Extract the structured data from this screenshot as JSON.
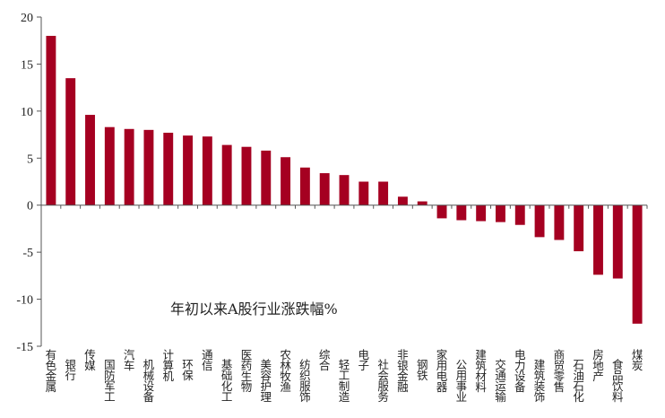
{
  "chart_data": {
    "type": "bar",
    "title": "",
    "annotation": "年初以来A股行业涨跌幅%",
    "xlabel": "",
    "ylabel": "",
    "ylim": [
      -15,
      20
    ],
    "yticks": [
      -15,
      -10,
      -5,
      0,
      5,
      10,
      15,
      20
    ],
    "grid": false,
    "bar_color": "#A50021",
    "categories": [
      "有色金属",
      "银行",
      "传媒",
      "国防军工",
      "汽车",
      "机械设备",
      "计算机",
      "环保",
      "通信",
      "基础化工",
      "医药生物",
      "美容护理",
      "农林牧渔",
      "纺织服饰",
      "综合",
      "轻工制造",
      "电子",
      "社会服务",
      "非银金融",
      "钢铁",
      "家用电器",
      "公用事业",
      "建筑材料",
      "交通运输",
      "电力设备",
      "建筑装饰",
      "商贸零售",
      "石油石化",
      "房地产",
      "食品饮料",
      "煤炭"
    ],
    "values": [
      18.0,
      13.5,
      9.6,
      8.3,
      8.1,
      8.0,
      7.7,
      7.4,
      7.3,
      6.4,
      6.2,
      5.8,
      5.1,
      4.0,
      3.4,
      3.2,
      2.5,
      2.5,
      0.9,
      0.4,
      -1.4,
      -1.6,
      -1.7,
      -1.8,
      -2.1,
      -3.4,
      -3.7,
      -4.9,
      -7.4,
      -7.8,
      -12.6
    ]
  }
}
